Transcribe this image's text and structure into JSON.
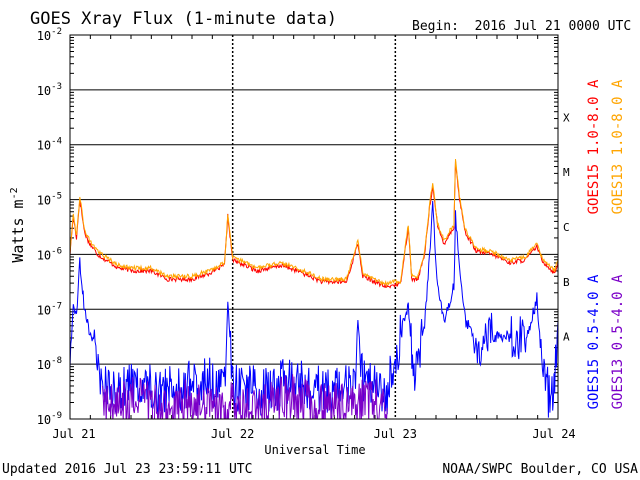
{
  "chart_data": {
    "type": "line",
    "title": "GOES Xray Flux (1-minute data)",
    "begin_label": "Begin:  2016 Jul 21 0000 UTC",
    "ylabel_main": "Watts m",
    "ylabel_sup": "-2",
    "xlabel": "Universal Time",
    "y_scale": "log",
    "ylim": [
      1e-09,
      0.01
    ],
    "y_ticks": [
      {
        "exp": "-2"
      },
      {
        "exp": "-3"
      },
      {
        "exp": "-4"
      },
      {
        "exp": "-5"
      },
      {
        "exp": "-6"
      },
      {
        "exp": "-7"
      },
      {
        "exp": "-8"
      },
      {
        "exp": "-9"
      }
    ],
    "tick_base": "10",
    "x_range_days": [
      0,
      3
    ],
    "x_ticks": [
      {
        "day": 0,
        "label": "Jul 21"
      },
      {
        "day": 1,
        "label": "Jul 22"
      },
      {
        "day": 2,
        "label": "Jul 23"
      },
      {
        "day": 3,
        "label": "Jul 24"
      }
    ],
    "flare_classes": [
      {
        "label": "X",
        "level": -3.5
      },
      {
        "label": "M",
        "level": -4.5
      },
      {
        "label": "C",
        "level": -5.5
      },
      {
        "label": "B",
        "level": -6.5
      },
      {
        "label": "A",
        "level": -7.5
      }
    ],
    "legend": [
      {
        "name": "GOES15 1.0-8.0 A",
        "color": "#ff0000"
      },
      {
        "name": "GOES13 1.0-8.0 A",
        "color": "#ffa500"
      },
      {
        "name": "GOES15 0.5-4.0 A",
        "color": "#0000ff"
      },
      {
        "name": "GOES13 0.5-4.0 A",
        "color": "#7b00c8"
      }
    ],
    "series": [
      {
        "name": "GOES15 1.0-8.0 A",
        "color": "#ff0000",
        "points": [
          [
            0,
            -6.0
          ],
          [
            0.02,
            -5.3
          ],
          [
            0.04,
            -5.7
          ],
          [
            0.06,
            -5.0
          ],
          [
            0.09,
            -5.6
          ],
          [
            0.12,
            -5.8
          ],
          [
            0.17,
            -6.0
          ],
          [
            0.22,
            -6.1
          ],
          [
            0.3,
            -6.25
          ],
          [
            0.4,
            -6.3
          ],
          [
            0.5,
            -6.3
          ],
          [
            0.6,
            -6.45
          ],
          [
            0.75,
            -6.45
          ],
          [
            0.85,
            -6.35
          ],
          [
            0.95,
            -6.2
          ],
          [
            0.97,
            -5.3
          ],
          [
            1.0,
            -6.1
          ],
          [
            1.15,
            -6.3
          ],
          [
            1.3,
            -6.2
          ],
          [
            1.4,
            -6.3
          ],
          [
            1.55,
            -6.5
          ],
          [
            1.7,
            -6.5
          ],
          [
            1.77,
            -5.8
          ],
          [
            1.8,
            -6.4
          ],
          [
            1.95,
            -6.6
          ],
          [
            1.99,
            -6.55
          ],
          [
            2.03,
            -6.55
          ],
          [
            2.08,
            -5.5
          ],
          [
            2.1,
            -6.45
          ],
          [
            2.14,
            -6.45
          ],
          [
            2.18,
            -6.0
          ],
          [
            2.21,
            -5.15
          ],
          [
            2.23,
            -4.75
          ],
          [
            2.26,
            -5.5
          ],
          [
            2.3,
            -5.8
          ],
          [
            2.36,
            -5.5
          ],
          [
            2.37,
            -4.3
          ],
          [
            2.39,
            -4.9
          ],
          [
            2.43,
            -5.6
          ],
          [
            2.5,
            -5.95
          ],
          [
            2.6,
            -6.0
          ],
          [
            2.7,
            -6.15
          ],
          [
            2.8,
            -6.1
          ],
          [
            2.87,
            -5.85
          ],
          [
            2.9,
            -6.1
          ],
          [
            2.98,
            -6.35
          ],
          [
            3.0,
            -6.15
          ]
        ]
      },
      {
        "name": "GOES13 1.0-8.0 A",
        "color": "#ffa500",
        "points": [
          [
            0,
            -5.95
          ],
          [
            0.02,
            -5.25
          ],
          [
            0.04,
            -5.65
          ],
          [
            0.06,
            -4.95
          ],
          [
            0.09,
            -5.55
          ],
          [
            0.12,
            -5.75
          ],
          [
            0.17,
            -5.95
          ],
          [
            0.22,
            -6.05
          ],
          [
            0.3,
            -6.2
          ],
          [
            0.4,
            -6.25
          ],
          [
            0.5,
            -6.25
          ],
          [
            0.6,
            -6.4
          ],
          [
            0.75,
            -6.4
          ],
          [
            0.85,
            -6.3
          ],
          [
            0.95,
            -6.15
          ],
          [
            0.97,
            -5.25
          ],
          [
            1.0,
            -6.05
          ],
          [
            1.15,
            -6.25
          ],
          [
            1.3,
            -6.15
          ],
          [
            1.4,
            -6.25
          ],
          [
            1.55,
            -6.45
          ],
          [
            1.7,
            -6.45
          ],
          [
            1.77,
            -5.75
          ],
          [
            1.8,
            -6.35
          ],
          [
            1.95,
            -6.55
          ],
          [
            1.99,
            -6.5
          ],
          [
            2.03,
            -6.5
          ],
          [
            2.08,
            -5.45
          ],
          [
            2.1,
            -6.4
          ],
          [
            2.14,
            -6.4
          ],
          [
            2.18,
            -5.95
          ],
          [
            2.21,
            -5.1
          ],
          [
            2.23,
            -4.7
          ],
          [
            2.26,
            -5.45
          ],
          [
            2.3,
            -5.75
          ],
          [
            2.36,
            -5.45
          ],
          [
            2.37,
            -4.25
          ],
          [
            2.39,
            -4.85
          ],
          [
            2.43,
            -5.55
          ],
          [
            2.5,
            -5.9
          ],
          [
            2.6,
            -5.95
          ],
          [
            2.7,
            -6.1
          ],
          [
            2.8,
            -6.05
          ],
          [
            2.87,
            -5.8
          ],
          [
            2.9,
            -6.05
          ],
          [
            2.98,
            -6.3
          ],
          [
            3.0,
            -6.1
          ]
        ]
      },
      {
        "name": "GOES15 0.5-4.0 A",
        "color": "#0000ff",
        "points": [
          [
            0,
            -8.5
          ],
          [
            0.02,
            -6.8
          ],
          [
            0.04,
            -7.2
          ],
          [
            0.06,
            -6.1
          ],
          [
            0.09,
            -7.0
          ],
          [
            0.15,
            -7.8
          ],
          [
            0.2,
            -8.4
          ],
          [
            0.3,
            -8.5
          ],
          [
            0.45,
            -8.3
          ],
          [
            0.55,
            -8.5
          ],
          [
            0.7,
            -8.4
          ],
          [
            0.85,
            -8.3
          ],
          [
            0.95,
            -8.4
          ],
          [
            0.97,
            -6.8
          ],
          [
            1.0,
            -8.4
          ],
          [
            1.2,
            -8.5
          ],
          [
            1.35,
            -8.3
          ],
          [
            1.45,
            -8.4
          ],
          [
            1.6,
            -8.5
          ],
          [
            1.76,
            -8.4
          ],
          [
            1.77,
            -7.1
          ],
          [
            1.8,
            -8.3
          ],
          [
            1.95,
            -8.5
          ],
          [
            2.08,
            -6.9
          ],
          [
            2.11,
            -8.2
          ],
          [
            2.18,
            -7.3
          ],
          [
            2.21,
            -6.1
          ],
          [
            2.23,
            -5.05
          ],
          [
            2.26,
            -6.6
          ],
          [
            2.3,
            -7.2
          ],
          [
            2.36,
            -6.6
          ],
          [
            2.37,
            -5.3
          ],
          [
            2.39,
            -6.0
          ],
          [
            2.43,
            -7.2
          ],
          [
            2.5,
            -7.6
          ],
          [
            2.6,
            -7.5
          ],
          [
            2.7,
            -7.5
          ],
          [
            2.8,
            -7.6
          ],
          [
            2.87,
            -6.8
          ],
          [
            2.9,
            -7.9
          ],
          [
            2.95,
            -8.7
          ],
          [
            2.98,
            -8.3
          ],
          [
            3.0,
            -7.2
          ]
        ]
      },
      {
        "name": "GOES13 0.5-4.0 A",
        "color": "#7b00c8",
        "points": [
          [
            0.2,
            -8.7
          ],
          [
            0.3,
            -8.8
          ],
          [
            0.45,
            -8.6
          ],
          [
            0.55,
            -8.9
          ],
          [
            0.7,
            -8.7
          ],
          [
            0.85,
            -8.8
          ],
          [
            0.95,
            -8.9
          ],
          [
            1.0,
            -8.7
          ],
          [
            1.2,
            -8.8
          ],
          [
            1.35,
            -8.6
          ],
          [
            1.45,
            -8.7
          ],
          [
            1.6,
            -8.8
          ],
          [
            1.76,
            -8.7
          ],
          [
            1.8,
            -8.6
          ],
          [
            1.95,
            -8.8
          ]
        ]
      }
    ]
  },
  "footer": {
    "updated": "Updated 2016 Jul 23 23:59:11 UTC",
    "source": "NOAA/SWPC Boulder, CO USA"
  }
}
